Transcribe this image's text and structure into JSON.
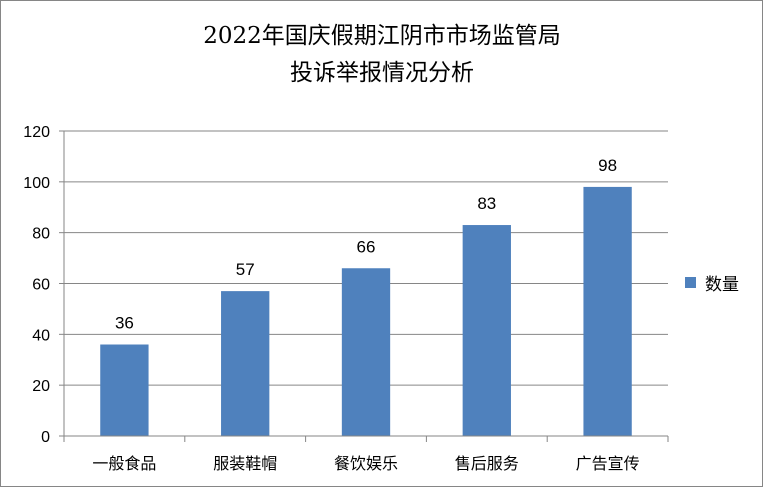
{
  "chart_data": {
    "type": "bar",
    "title_lines": [
      "2022年国庆假期江阴市市场监管局",
      "投诉举报情况分析"
    ],
    "categories": [
      "一般食品",
      "服装鞋帽",
      "餐饮娱乐",
      "售后服务",
      "广告宣传"
    ],
    "series": [
      {
        "name": "数量",
        "values": [
          36,
          57,
          66,
          83,
          98
        ],
        "color": "#4F81BD"
      }
    ],
    "ylim": [
      0,
      120
    ],
    "yticks": [
      0,
      20,
      40,
      60,
      80,
      100,
      120
    ],
    "grid": true,
    "legend_position": "right",
    "data_labels": true
  }
}
